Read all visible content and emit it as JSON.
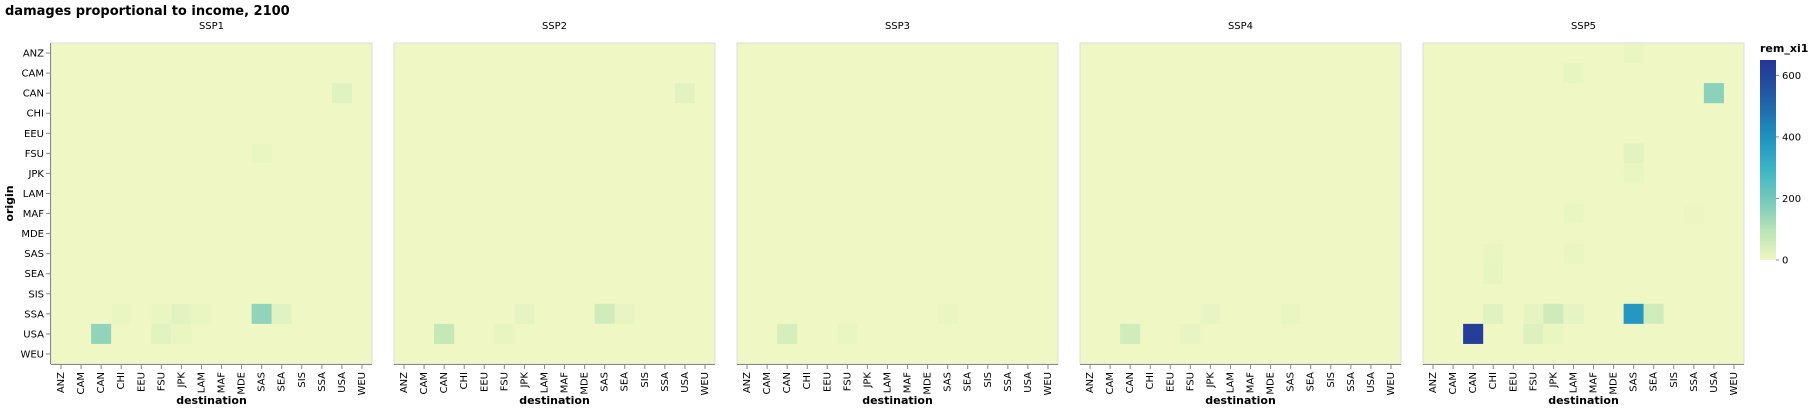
{
  "chart_data": {
    "type": "heatmap",
    "title": "damages proportional to income, 2100",
    "xlabel": "destination",
    "ylabel": "origin",
    "categories_x": [
      "ANZ",
      "CAM",
      "CAN",
      "CHI",
      "EEU",
      "FSU",
      "JPK",
      "LAM",
      "MAF",
      "MDE",
      "SAS",
      "SEA",
      "SIS",
      "SSA",
      "USA",
      "WEU"
    ],
    "categories_y": [
      "ANZ",
      "CAM",
      "CAN",
      "CHI",
      "EEU",
      "FSU",
      "JPK",
      "LAM",
      "MAF",
      "MDE",
      "SAS",
      "SEA",
      "SIS",
      "SSA",
      "USA",
      "WEU"
    ],
    "legend": {
      "title": "rem_xi1",
      "ticks": [
        0,
        200,
        400,
        600
      ],
      "domain": [
        0,
        650
      ],
      "colors": [
        "#eff8c4",
        "#c5e8b6",
        "#7fcdbb",
        "#41b6c4",
        "#1d91c0",
        "#225ea8",
        "#253494"
      ],
      "placement": "right"
    },
    "background_color": "#eff8c4",
    "facets": [
      {
        "name": "SSP1",
        "cells": [
          {
            "origin": "CAN",
            "destination": "USA",
            "value": 25
          },
          {
            "origin": "FSU",
            "destination": "SAS",
            "value": 6
          },
          {
            "origin": "SSA",
            "destination": "CHI",
            "value": 6
          },
          {
            "origin": "SSA",
            "destination": "FSU",
            "value": 6
          },
          {
            "origin": "SSA",
            "destination": "JPK",
            "value": 20
          },
          {
            "origin": "SSA",
            "destination": "LAM",
            "value": 8
          },
          {
            "origin": "SSA",
            "destination": "SAS",
            "value": 150
          },
          {
            "origin": "SSA",
            "destination": "SEA",
            "value": 25
          },
          {
            "origin": "USA",
            "destination": "CAN",
            "value": 150
          },
          {
            "origin": "USA",
            "destination": "FSU",
            "value": 20
          },
          {
            "origin": "USA",
            "destination": "JPK",
            "value": 6
          }
        ]
      },
      {
        "name": "SSP2",
        "cells": [
          {
            "origin": "CAN",
            "destination": "USA",
            "value": 18
          },
          {
            "origin": "SSA",
            "destination": "JPK",
            "value": 15
          },
          {
            "origin": "SSA",
            "destination": "SAS",
            "value": 55
          },
          {
            "origin": "SSA",
            "destination": "SEA",
            "value": 10
          },
          {
            "origin": "USA",
            "destination": "CAN",
            "value": 80
          },
          {
            "origin": "USA",
            "destination": "FSU",
            "value": 12
          }
        ]
      },
      {
        "name": "SSP3",
        "cells": [
          {
            "origin": "SSA",
            "destination": "SAS",
            "value": 8
          },
          {
            "origin": "USA",
            "destination": "CAN",
            "value": 45
          },
          {
            "origin": "USA",
            "destination": "FSU",
            "value": 8
          }
        ]
      },
      {
        "name": "SSP4",
        "cells": [
          {
            "origin": "SSA",
            "destination": "JPK",
            "value": 10
          },
          {
            "origin": "SSA",
            "destination": "SAS",
            "value": 6
          },
          {
            "origin": "USA",
            "destination": "CAN",
            "value": 55
          },
          {
            "origin": "USA",
            "destination": "FSU",
            "value": 10
          }
        ]
      },
      {
        "name": "SSP5",
        "cells": [
          {
            "origin": "ANZ",
            "destination": "SAS",
            "value": 6
          },
          {
            "origin": "CAM",
            "destination": "LAM",
            "value": 12
          },
          {
            "origin": "CAN",
            "destination": "USA",
            "value": 160
          },
          {
            "origin": "FSU",
            "destination": "SAS",
            "value": 18
          },
          {
            "origin": "JPK",
            "destination": "SAS",
            "value": 8
          },
          {
            "origin": "MAF",
            "destination": "LAM",
            "value": 8
          },
          {
            "origin": "MAF",
            "destination": "SSA",
            "value": 5
          },
          {
            "origin": "SAS",
            "destination": "CHI",
            "value": 6
          },
          {
            "origin": "SAS",
            "destination": "LAM",
            "value": 8
          },
          {
            "origin": "SEA",
            "destination": "CHI",
            "value": 12
          },
          {
            "origin": "SSA",
            "destination": "CHI",
            "value": 25
          },
          {
            "origin": "SSA",
            "destination": "FSU",
            "value": 15
          },
          {
            "origin": "SSA",
            "destination": "JPK",
            "value": 60
          },
          {
            "origin": "SSA",
            "destination": "LAM",
            "value": 15
          },
          {
            "origin": "SSA",
            "destination": "SAS",
            "value": 380
          },
          {
            "origin": "SSA",
            "destination": "SEA",
            "value": 55
          },
          {
            "origin": "USA",
            "destination": "CAN",
            "value": 620
          },
          {
            "origin": "USA",
            "destination": "FSU",
            "value": 30
          },
          {
            "origin": "USA",
            "destination": "JPK",
            "value": 8
          }
        ]
      }
    ]
  }
}
